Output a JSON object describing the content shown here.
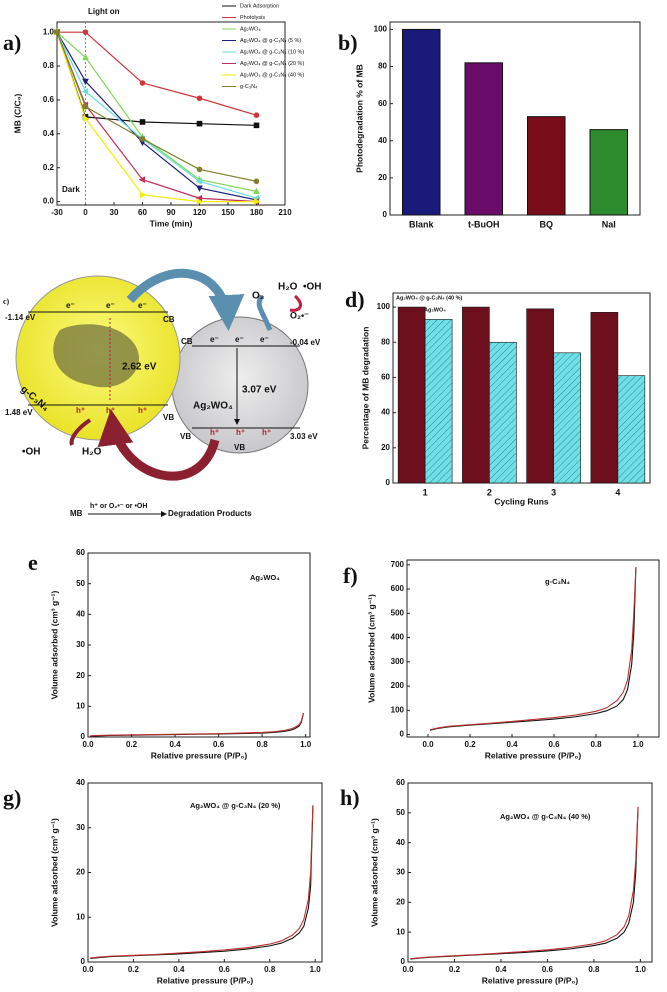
{
  "chart_data": [
    {
      "type": "line",
      "label": "a)",
      "xlabel": "Time (min)",
      "ylabel": "MB (C/C₀)",
      "annotations": [
        "Light on",
        "Dark"
      ],
      "x": [
        -30,
        0,
        60,
        120,
        180
      ],
      "xlim": [
        -30,
        210
      ],
      "xticks": [
        -30,
        0,
        30,
        60,
        90,
        120,
        150,
        180,
        210
      ],
      "ylim": [
        -0.02,
        1.06
      ],
      "yticks": [
        {
          "value": 0,
          "label": "0.0"
        },
        0.2,
        0.4,
        0.6,
        0.8,
        {
          "value": 1,
          "label": "1.0"
        }
      ],
      "series": [
        {
          "name": "Dark Adsorption",
          "color": "#111111",
          "marker": "square",
          "values": [
            1.0,
            0.5,
            0.47,
            0.46,
            0.45
          ]
        },
        {
          "name": "Photolysis",
          "color": "#d0343a",
          "marker": "circle",
          "values": [
            1.0,
            1.0,
            0.7,
            0.61,
            0.51
          ]
        },
        {
          "name": "Ag₂WO₄",
          "color": "#7ed957",
          "marker": "triangle-up",
          "values": [
            1.0,
            0.85,
            0.38,
            0.13,
            0.06
          ]
        },
        {
          "name": "Ag₂WO₄ @ g-C₃N₄ (5 %)",
          "color": "#1f1f7a",
          "marker": "triangle-down",
          "values": [
            1.0,
            0.71,
            0.35,
            0.08,
            0.01
          ]
        },
        {
          "name": "Ag₂WO₄ @ g-C₃N₄ (10 %)",
          "color": "#66dede",
          "marker": "triangle-left",
          "values": [
            1.0,
            0.65,
            0.37,
            0.12,
            0.02
          ]
        },
        {
          "name": "Ag₂WO₄ @ g-C₃N₄ (20 %)",
          "color": "#c0305a",
          "marker": "triangle-left",
          "values": [
            1.0,
            0.57,
            0.13,
            0.02,
            0.0
          ]
        },
        {
          "name": "Ag₂WO₄ @ g-C₃N₄ (40 %)",
          "color": "#f2ee00",
          "marker": "triangle-right",
          "values": [
            1.0,
            0.49,
            0.04,
            0.0,
            0.0
          ]
        },
        {
          "name": "g-C₃N₄",
          "color": "#808030",
          "marker": "circle",
          "values": [
            1.0,
            0.56,
            0.37,
            0.19,
            0.12
          ]
        }
      ]
    },
    {
      "type": "bar",
      "label": "b)",
      "ylabel": "Photodegradation % of MB",
      "categories": [
        "Blank",
        "t-BuOH",
        "BQ",
        "NaI"
      ],
      "values": [
        100,
        82,
        53,
        46
      ],
      "colors": [
        "#1a1a7a",
        "#6a0d6a",
        "#7a0d1a",
        "#2d8a2d"
      ],
      "ylim": [
        0,
        104
      ],
      "yticks": [
        0,
        20,
        40,
        60,
        80,
        100
      ]
    },
    {
      "type": "bar",
      "label": "d)",
      "xlabel": "Cycling Runs",
      "ylabel": "Percentage of MB degradation",
      "categories": [
        "1",
        "2",
        "3",
        "4"
      ],
      "ylim": [
        0,
        108
      ],
      "yticks": [
        0,
        20,
        40,
        60,
        80,
        100
      ],
      "series": [
        {
          "name": "Ag₂WO₄ @ g-C₃N₄ (40 %)",
          "color": "#6e0f1e",
          "values": [
            100,
            100,
            99,
            97
          ]
        },
        {
          "name": "Ag₂WO₄",
          "color": "#6fe0e6",
          "hatch": true,
          "values": [
            93,
            80,
            74,
            61
          ]
        }
      ]
    },
    {
      "type": "line",
      "label": "e",
      "annotation": "Ag₂WO₄",
      "xlabel": "Relative pressure (P/P₀)",
      "ylabel": "Volume adsorbed (cm³ g⁻¹)",
      "x": [
        0.01,
        0.05,
        0.1,
        0.2,
        0.3,
        0.4,
        0.5,
        0.6,
        0.7,
        0.8,
        0.85,
        0.9,
        0.93,
        0.95,
        0.97,
        0.98,
        0.99
      ],
      "xlim": [
        0,
        1.02
      ],
      "xticks": [
        {
          "value": 0,
          "label": "0.0"
        },
        0.2,
        0.4,
        0.6,
        0.8,
        {
          "value": 1,
          "label": "1.0"
        }
      ],
      "ylim": [
        0,
        60
      ],
      "yticks": [
        0,
        10,
        20,
        30,
        40,
        50,
        60
      ],
      "series": [
        {
          "color": "#111111",
          "values": [
            0.3,
            0.4,
            0.5,
            0.6,
            0.7,
            0.8,
            0.9,
            1.0,
            1.1,
            1.3,
            1.5,
            1.8,
            2.2,
            2.7,
            3.6,
            4.8,
            7.8
          ]
        },
        {
          "color": "#c0302f",
          "values": [
            0.4,
            0.5,
            0.6,
            0.7,
            0.8,
            0.9,
            1.0,
            1.1,
            1.3,
            1.5,
            1.7,
            2.1,
            2.6,
            3.1,
            4.0,
            5.2,
            7.8
          ]
        }
      ]
    },
    {
      "type": "line",
      "label": "f)",
      "annotation": "g-C₃N₄",
      "xlabel": "Relative pressure (P/P₀)",
      "ylabel": "Volume adsorbed (cm³ g⁻¹)",
      "x": [
        0.01,
        0.05,
        0.1,
        0.2,
        0.3,
        0.4,
        0.5,
        0.6,
        0.7,
        0.8,
        0.85,
        0.9,
        0.93,
        0.95,
        0.97,
        0.98,
        0.99
      ],
      "xlim": [
        -0.1,
        1.1
      ],
      "xticks": [
        {
          "value": 0,
          "label": "0.0"
        },
        0.2,
        0.4,
        0.6,
        0.8,
        {
          "value": 1,
          "label": "1.0"
        }
      ],
      "ylim": [
        -10,
        720
      ],
      "yticks": [
        0,
        100,
        200,
        300,
        400,
        500,
        600,
        700
      ],
      "series": [
        {
          "color": "#111111",
          "values": [
            18,
            26,
            32,
            39,
            45,
            51,
            57,
            64,
            73,
            87,
            98,
            118,
            145,
            185,
            290,
            420,
            690
          ]
        },
        {
          "color": "#c0302f",
          "values": [
            20,
            28,
            34,
            41,
            47,
            54,
            62,
            70,
            80,
            96,
            110,
            140,
            175,
            225,
            350,
            500,
            690
          ]
        }
      ]
    },
    {
      "type": "line",
      "label": "g)",
      "annotation": "Ag₂WO₄ @ g-C₃N₄ (20 %)",
      "xlabel": "Relative pressure (P/P₀)",
      "ylabel": "Volume adsorbed (cm³ g⁻¹)",
      "x": [
        0.01,
        0.05,
        0.1,
        0.2,
        0.3,
        0.4,
        0.5,
        0.6,
        0.7,
        0.8,
        0.85,
        0.9,
        0.93,
        0.95,
        0.97,
        0.98,
        0.99
      ],
      "xlim": [
        0,
        1.03
      ],
      "xticks": [
        {
          "value": 0,
          "label": "0.0"
        },
        0.2,
        0.4,
        0.6,
        0.8,
        {
          "value": 1,
          "label": "1.0"
        }
      ],
      "ylim": [
        0,
        40
      ],
      "yticks": [
        0,
        10,
        20,
        30,
        40
      ],
      "series": [
        {
          "color": "#111111",
          "values": [
            0.8,
            1.0,
            1.2,
            1.4,
            1.6,
            1.8,
            2.1,
            2.4,
            2.9,
            3.6,
            4.2,
            5.3,
            6.5,
            8.0,
            12.0,
            17.0,
            35.0
          ]
        },
        {
          "color": "#c0302f",
          "values": [
            0.9,
            1.1,
            1.3,
            1.5,
            1.7,
            2.0,
            2.3,
            2.7,
            3.2,
            4.0,
            4.7,
            6.0,
            7.5,
            9.5,
            14.0,
            20.0,
            35.0
          ]
        }
      ]
    },
    {
      "type": "line",
      "label": "h)",
      "annotation": "Ag₂WO₄ @ g-C₃N₄ (40 %)",
      "xlabel": "Relative pressure (P/P₀)",
      "ylabel": "Volume adsorbed (cm³ g⁻¹)",
      "x": [
        0.01,
        0.05,
        0.1,
        0.2,
        0.3,
        0.4,
        0.5,
        0.6,
        0.7,
        0.8,
        0.85,
        0.9,
        0.93,
        0.95,
        0.97,
        0.98,
        0.99
      ],
      "xlim": [
        0,
        1.05
      ],
      "xticks": [
        {
          "value": 0,
          "label": "0.0"
        },
        0.2,
        0.4,
        0.6,
        0.8,
        {
          "value": 1,
          "label": "1.0"
        }
      ],
      "ylim": [
        0,
        60
      ],
      "yticks": [
        0,
        10,
        20,
        30,
        40,
        50,
        60
      ],
      "series": [
        {
          "color": "#111111",
          "values": [
            1.0,
            1.3,
            1.6,
            2.0,
            2.4,
            2.8,
            3.2,
            3.7,
            4.4,
            5.5,
            6.3,
            8.0,
            10.0,
            13.0,
            20.0,
            30.0,
            52.0
          ]
        },
        {
          "color": "#c0302f",
          "values": [
            1.1,
            1.4,
            1.7,
            2.1,
            2.5,
            3.0,
            3.5,
            4.1,
            4.9,
            6.1,
            7.1,
            9.2,
            11.8,
            15.5,
            24.0,
            34.0,
            52.0
          ]
        }
      ]
    }
  ],
  "diagram": {
    "label": "c)",
    "gcn": {
      "name": "g-C₃N₄",
      "cb_potential": "-1.14 eV",
      "vb_potential": "1.48 eV",
      "gap": "2.62 eV",
      "cb": "CB",
      "vb": "VB",
      "electron": "e⁻",
      "hole": "h⁺"
    },
    "ag": {
      "name": "Ag₂WO₄",
      "cb_potential": "-0.04 eV",
      "vb_potential": "3.03 eV",
      "gap": "3.07 eV",
      "cb": "CB",
      "vb": "VB",
      "electron": "e⁻",
      "hole": "h⁺"
    },
    "o2": "O₂",
    "h2o_top": "H₂O",
    "oh_top": "•OH",
    "superoxide": "O₂•⁻",
    "oh_bottom": "•OH",
    "h2o_bottom": "H₂O",
    "scheme": {
      "reactant": "MB",
      "condition": "h⁺ or O₂•⁻ or •OH",
      "product": "Degradation Products"
    }
  }
}
